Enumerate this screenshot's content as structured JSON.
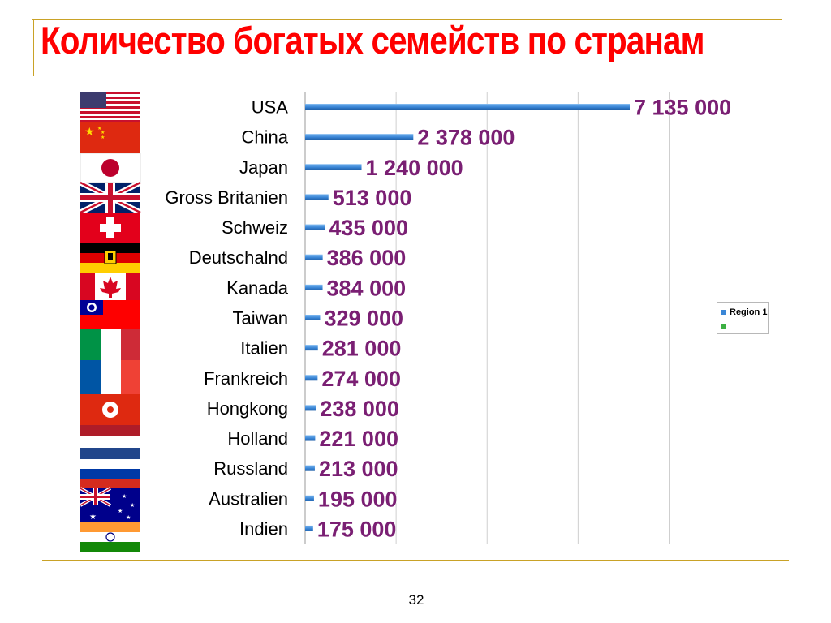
{
  "page": {
    "title": "Количество богатых семейств по странам",
    "page_number": "32"
  },
  "colors": {
    "title": "#ff0000",
    "accent_line": "#c9a227",
    "bar": "#3a86d6",
    "value_label": "#7a1f73",
    "legend_series_1": "#3a86d6",
    "legend_series_2": "#3cb043"
  },
  "flags": [
    "USA",
    "China",
    "Japan",
    "United Kingdom",
    "Switzerland",
    "Germany",
    "Canada",
    "Taiwan",
    "Italy",
    "France",
    "Hong Kong",
    "Netherlands",
    "Russia",
    "Australia",
    "India"
  ],
  "chart_data": {
    "type": "bar",
    "orientation": "horizontal",
    "categories": [
      "USA",
      "China",
      "Japan",
      "Gross Britanien",
      "Schweiz",
      "Deutschalnd",
      "Kanada",
      "Taiwan",
      "Italien",
      "Frankreich",
      "Hongkong",
      "Holland",
      "Russland",
      "Australien",
      "Indien"
    ],
    "series": [
      {
        "name": "Region 1",
        "values": [
          7135000,
          2378000,
          1240000,
          513000,
          435000,
          386000,
          384000,
          329000,
          281000,
          274000,
          238000,
          221000,
          213000,
          195000,
          175000
        ]
      }
    ],
    "data_labels": [
      "7 135 000",
      "2 378 000",
      "1 240 000",
      "513 000",
      "435 000",
      "386 000",
      "384 000",
      "329 000",
      "281 000",
      "274 000",
      "238 000",
      "221 000",
      "213 000",
      "195 000",
      "175 000"
    ],
    "xlim": [
      0,
      8000000
    ],
    "grid": true,
    "legend": {
      "placement": "right",
      "entries": [
        "Region 1",
        ""
      ]
    }
  }
}
